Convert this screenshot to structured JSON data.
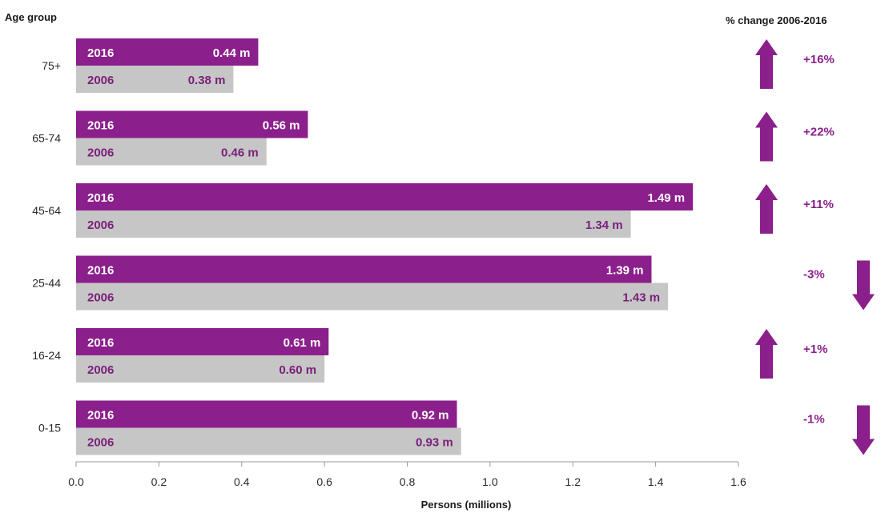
{
  "chart_data": {
    "type": "bar",
    "orientation": "horizontal",
    "categories": [
      "75+",
      "65-74",
      "45-64",
      "25-44",
      "16-24",
      "0-15"
    ],
    "series": [
      {
        "name": "2016",
        "values": [
          0.44,
          0.56,
          1.49,
          1.39,
          0.61,
          0.92
        ],
        "labels": [
          "0.44 m",
          "0.56 m",
          "1.49 m",
          "1.39 m",
          "0.61 m",
          "0.92 m"
        ]
      },
      {
        "name": "2006",
        "values": [
          0.38,
          0.46,
          1.34,
          1.43,
          0.6,
          0.93
        ],
        "labels": [
          "0.38 m",
          "0.46 m",
          "1.34 m",
          "1.43 m",
          "0.60 m",
          "0.93 m"
        ]
      }
    ],
    "pct_change_title": "% change 2006-2016",
    "pct_change": [
      {
        "label": "+16%",
        "direction": "up"
      },
      {
        "label": "+22%",
        "direction": "up"
      },
      {
        "label": "+11%",
        "direction": "up"
      },
      {
        "label": "-3%",
        "direction": "down"
      },
      {
        "label": "+1%",
        "direction": "up"
      },
      {
        "label": "-1%",
        "direction": "down"
      }
    ],
    "ylabel": "Age group",
    "xlabel": "Persons (millions)",
    "xlim": [
      0,
      1.6
    ],
    "xticks": [
      "0.0",
      "0.2",
      "0.4",
      "0.6",
      "0.8",
      "1.0",
      "1.2",
      "1.4",
      "1.6"
    ],
    "colors": {
      "series_2016": "#8b1f8b",
      "series_2006": "#c6c6c6",
      "arrow": "#8b1f8b",
      "label_2006": "#7a1f7a"
    }
  }
}
